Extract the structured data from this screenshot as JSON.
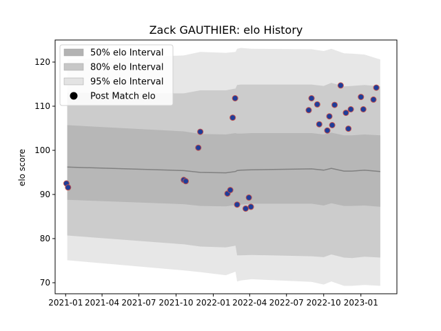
{
  "chart_data": {
    "type": "area",
    "title": "Zack GAUTHIER: elo History",
    "xlabel": "",
    "ylabel": "elo score",
    "xlim": [
      "2020-12-06",
      "2023-03-31"
    ],
    "ylim": [
      67.5,
      125
    ],
    "x_ticks": [
      {
        "date": "2021-01-01",
        "label": "2021-01"
      },
      {
        "date": "2021-04-01",
        "label": "2021-04"
      },
      {
        "date": "2021-07-01",
        "label": "2021-07"
      },
      {
        "date": "2021-10-01",
        "label": "2021-10"
      },
      {
        "date": "2022-01-01",
        "label": "2022-01"
      },
      {
        "date": "2022-04-01",
        "label": "2022-04"
      },
      {
        "date": "2022-07-01",
        "label": "2022-07"
      },
      {
        "date": "2022-10-01",
        "label": "2022-10"
      },
      {
        "date": "2023-01-01",
        "label": "2023-01"
      }
    ],
    "y_ticks": [
      70,
      80,
      90,
      100,
      110,
      120
    ],
    "grid": false,
    "legend_position": "top-left",
    "legend": [
      {
        "label": "50% elo Interval",
        "kind": "band",
        "color": "#b3b3b3"
      },
      {
        "label": "80% elo Interval",
        "kind": "band",
        "color": "#c7c7c7"
      },
      {
        "label": "95% elo Interval",
        "kind": "band",
        "color": "#e3e3e3"
      },
      {
        "label": "Post Match elo",
        "kind": "marker",
        "color": "#000000"
      }
    ],
    "band_x": [
      "2021-01-05",
      "2021-10-20",
      "2021-11-30",
      "2022-02-01",
      "2022-02-25",
      "2022-03-01",
      "2022-03-10",
      "2022-04-05",
      "2022-04-06",
      "2022-09-01",
      "2022-10-01",
      "2022-10-20",
      "2022-11-20",
      "2022-12-10",
      "2023-01-10",
      "2023-02-18"
    ],
    "mean": [
      96.2,
      95.4,
      95.0,
      94.9,
      95.2,
      95.4,
      95.5,
      95.6,
      95.6,
      95.8,
      95.5,
      95.9,
      95.3,
      95.3,
      95.5,
      95.2
    ],
    "bands": {
      "50": {
        "lower": [
          88.8,
          87.8,
          87.4,
          87.3,
          87.6,
          87.6,
          87.7,
          87.9,
          87.9,
          87.9,
          87.5,
          88.0,
          87.4,
          87.4,
          87.5,
          87.2
        ],
        "upper": [
          105.7,
          104.3,
          103.7,
          103.6,
          103.9,
          103.8,
          103.8,
          103.9,
          103.9,
          103.9,
          103.6,
          104.0,
          103.4,
          103.4,
          103.6,
          103.4
        ]
      },
      "80": {
        "lower": [
          80.7,
          78.7,
          78.2,
          78.0,
          78.4,
          76.2,
          76.2,
          76.3,
          76.3,
          76.0,
          75.8,
          76.4,
          75.7,
          75.6,
          75.9,
          75.7
        ],
        "upper": [
          113.0,
          112.9,
          113.6,
          113.6,
          114.0,
          114.8,
          114.9,
          114.9,
          114.9,
          114.9,
          114.6,
          115.3,
          114.5,
          114.6,
          114.8,
          114.5
        ]
      },
      "95": {
        "lower": [
          75.1,
          72.8,
          72.4,
          71.7,
          72.5,
          70.3,
          70.5,
          70.8,
          70.8,
          70.2,
          69.6,
          70.3,
          69.3,
          69.3,
          69.5,
          69.3
        ],
        "upper": [
          120.6,
          121.5,
          122.3,
          122.1,
          122.3,
          123.0,
          123.2,
          123.0,
          123.0,
          122.9,
          122.5,
          123.0,
          122.0,
          121.9,
          121.7,
          120.6
        ]
      }
    },
    "points": [
      {
        "date": "2021-01-03",
        "elo": 92.5
      },
      {
        "date": "2021-01-07",
        "elo": 91.6
      },
      {
        "date": "2021-10-20",
        "elo": 93.3
      },
      {
        "date": "2021-10-25",
        "elo": 93.0
      },
      {
        "date": "2021-11-25",
        "elo": 100.6
      },
      {
        "date": "2021-11-30",
        "elo": 104.2
      },
      {
        "date": "2022-02-05",
        "elo": 90.2
      },
      {
        "date": "2022-02-12",
        "elo": 91.0
      },
      {
        "date": "2022-02-18",
        "elo": 107.4
      },
      {
        "date": "2022-02-24",
        "elo": 111.8
      },
      {
        "date": "2022-03-01",
        "elo": 87.7
      },
      {
        "date": "2022-03-22",
        "elo": 86.8
      },
      {
        "date": "2022-03-30",
        "elo": 89.3
      },
      {
        "date": "2022-04-04",
        "elo": 87.2
      },
      {
        "date": "2022-08-25",
        "elo": 109.1
      },
      {
        "date": "2022-09-01",
        "elo": 111.8
      },
      {
        "date": "2022-09-15",
        "elo": 110.4
      },
      {
        "date": "2022-09-20",
        "elo": 105.9
      },
      {
        "date": "2022-10-10",
        "elo": 104.5
      },
      {
        "date": "2022-10-15",
        "elo": 107.7
      },
      {
        "date": "2022-10-22",
        "elo": 105.7
      },
      {
        "date": "2022-10-28",
        "elo": 110.3
      },
      {
        "date": "2022-11-12",
        "elo": 114.7
      },
      {
        "date": "2022-11-25",
        "elo": 108.5
      },
      {
        "date": "2022-12-01",
        "elo": 104.9
      },
      {
        "date": "2022-12-07",
        "elo": 109.3
      },
      {
        "date": "2023-01-01",
        "elo": 112.1
      },
      {
        "date": "2023-01-07",
        "elo": 109.3
      },
      {
        "date": "2023-02-01",
        "elo": 111.5
      },
      {
        "date": "2023-02-08",
        "elo": 114.2
      }
    ],
    "colors": {
      "band_50": "#b3b3b3",
      "band_80": "#c7c7c7",
      "band_95": "#e3e3e3",
      "mean_line": "#808080",
      "marker_fill": "#1f3d99",
      "marker_edge": "#c0504d"
    }
  }
}
